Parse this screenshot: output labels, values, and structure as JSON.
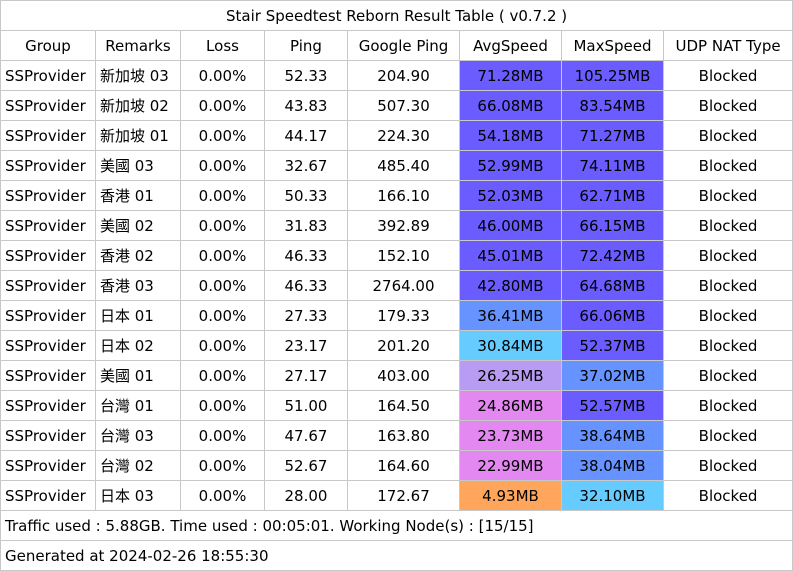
{
  "window": {
    "title": "Stair Speedtest Reborn Result Table ( v0.7.2 )"
  },
  "table": {
    "headers": [
      "Group",
      "Remarks",
      "Loss",
      "Ping",
      "Google Ping",
      "AvgSpeed",
      "MaxSpeed",
      "UDP NAT Type"
    ],
    "rows": [
      {
        "group": "SSProvider",
        "remarks": "新加坡 03",
        "loss": "0.00%",
        "ping": "52.33",
        "google_ping": "204.90",
        "avg_speed": "71.28MB",
        "avg_color": "#6a5cff",
        "max_speed": "105.25MB",
        "max_color": "#6a5cff",
        "udp_nat": "Blocked"
      },
      {
        "group": "SSProvider",
        "remarks": "新加坡 02",
        "loss": "0.00%",
        "ping": "43.83",
        "google_ping": "507.30",
        "avg_speed": "66.08MB",
        "avg_color": "#6a5cff",
        "max_speed": "83.54MB",
        "max_color": "#6a5cff",
        "udp_nat": "Blocked"
      },
      {
        "group": "SSProvider",
        "remarks": "新加坡 01",
        "loss": "0.00%",
        "ping": "44.17",
        "google_ping": "224.30",
        "avg_speed": "54.18MB",
        "avg_color": "#6a5cff",
        "max_speed": "71.27MB",
        "max_color": "#6a5cff",
        "udp_nat": "Blocked"
      },
      {
        "group": "SSProvider",
        "remarks": "美國 03",
        "loss": "0.00%",
        "ping": "32.67",
        "google_ping": "485.40",
        "avg_speed": "52.99MB",
        "avg_color": "#6a5cff",
        "max_speed": "74.11MB",
        "max_color": "#6a5cff",
        "udp_nat": "Blocked"
      },
      {
        "group": "SSProvider",
        "remarks": "香港 01",
        "loss": "0.00%",
        "ping": "50.33",
        "google_ping": "166.10",
        "avg_speed": "52.03MB",
        "avg_color": "#6a5cff",
        "max_speed": "62.71MB",
        "max_color": "#6a5cff",
        "udp_nat": "Blocked"
      },
      {
        "group": "SSProvider",
        "remarks": "美國 02",
        "loss": "0.00%",
        "ping": "31.83",
        "google_ping": "392.89",
        "avg_speed": "46.00MB",
        "avg_color": "#6a5cff",
        "max_speed": "66.15MB",
        "max_color": "#6a5cff",
        "udp_nat": "Blocked"
      },
      {
        "group": "SSProvider",
        "remarks": "香港 02",
        "loss": "0.00%",
        "ping": "46.33",
        "google_ping": "152.10",
        "avg_speed": "45.01MB",
        "avg_color": "#6a5cff",
        "max_speed": "72.42MB",
        "max_color": "#6a5cff",
        "udp_nat": "Blocked"
      },
      {
        "group": "SSProvider",
        "remarks": "香港 03",
        "loss": "0.00%",
        "ping": "46.33",
        "google_ping": "2764.00",
        "avg_speed": "42.80MB",
        "avg_color": "#6a5cff",
        "max_speed": "64.68MB",
        "max_color": "#6a5cff",
        "udp_nat": "Blocked"
      },
      {
        "group": "SSProvider",
        "remarks": "日本 01",
        "loss": "0.00%",
        "ping": "27.33",
        "google_ping": "179.33",
        "avg_speed": "36.41MB",
        "avg_color": "#6693ff",
        "max_speed": "66.06MB",
        "max_color": "#6a5cff",
        "udp_nat": "Blocked"
      },
      {
        "group": "SSProvider",
        "remarks": "日本 02",
        "loss": "0.00%",
        "ping": "23.17",
        "google_ping": "201.20",
        "avg_speed": "30.84MB",
        "avg_color": "#66ccff",
        "max_speed": "52.37MB",
        "max_color": "#6a5cff",
        "udp_nat": "Blocked"
      },
      {
        "group": "SSProvider",
        "remarks": "美國 01",
        "loss": "0.00%",
        "ping": "27.17",
        "google_ping": "403.00",
        "avg_speed": "26.25MB",
        "avg_color": "#b89cf3",
        "max_speed": "37.02MB",
        "max_color": "#6693ff",
        "udp_nat": "Blocked"
      },
      {
        "group": "SSProvider",
        "remarks": "台灣 01",
        "loss": "0.00%",
        "ping": "51.00",
        "google_ping": "164.50",
        "avg_speed": "24.86MB",
        "avg_color": "#e288f0",
        "max_speed": "52.57MB",
        "max_color": "#6a5cff",
        "udp_nat": "Blocked"
      },
      {
        "group": "SSProvider",
        "remarks": "台灣 03",
        "loss": "0.00%",
        "ping": "47.67",
        "google_ping": "163.80",
        "avg_speed": "23.73MB",
        "avg_color": "#e288f0",
        "max_speed": "38.64MB",
        "max_color": "#6693ff",
        "udp_nat": "Blocked"
      },
      {
        "group": "SSProvider",
        "remarks": "台灣 02",
        "loss": "0.00%",
        "ping": "52.67",
        "google_ping": "164.60",
        "avg_speed": "22.99MB",
        "avg_color": "#e288f0",
        "max_speed": "38.04MB",
        "max_color": "#6693ff",
        "udp_nat": "Blocked"
      },
      {
        "group": "SSProvider",
        "remarks": "日本 03",
        "loss": "0.00%",
        "ping": "28.00",
        "google_ping": "172.67",
        "avg_speed": "4.93MB",
        "avg_color": "#ffa65c",
        "max_speed": "32.10MB",
        "max_color": "#66ccff",
        "udp_nat": "Blocked"
      }
    ]
  },
  "footer": {
    "traffic": "Traffic used : 5.88GB. Time used : 00:05:01. Working Node(s) : [15/15]",
    "generated": "Generated at 2024-02-26 18:55:30"
  },
  "colors": {
    "border": "#c8c8c8",
    "background": "#ffffff"
  }
}
